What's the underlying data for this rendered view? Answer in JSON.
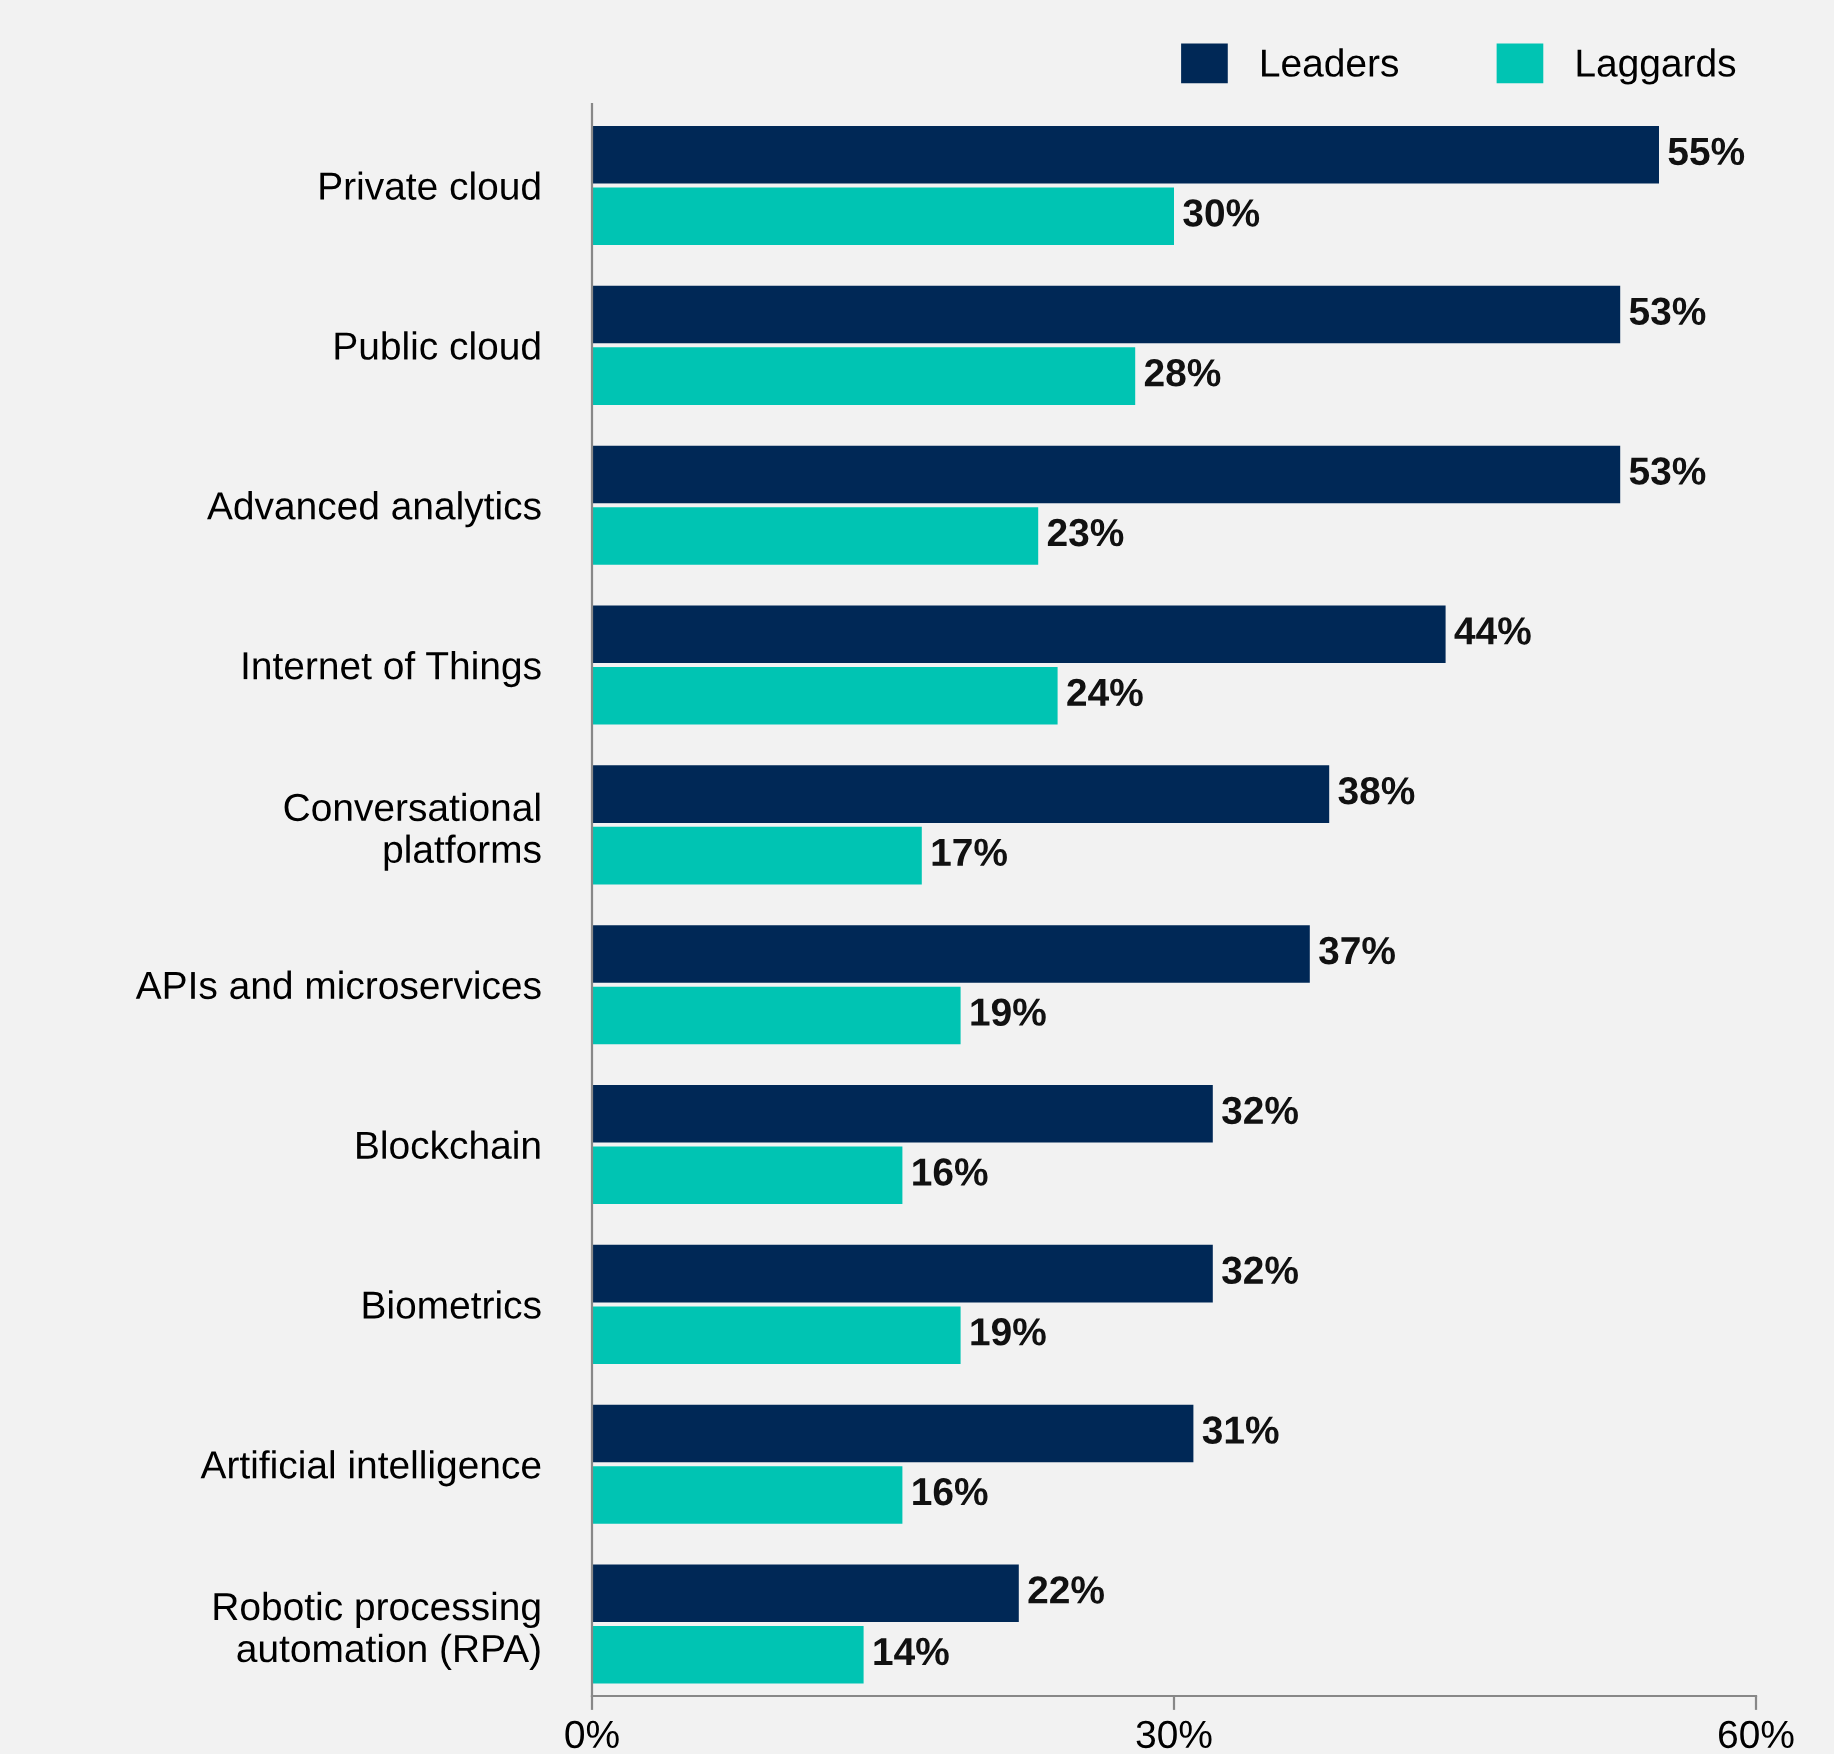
{
  "chart_data": {
    "type": "bar",
    "orientation": "horizontal",
    "categories": [
      "Private cloud",
      "Public cloud",
      "Advanced analytics",
      "Internet of Things",
      "Conversational\nplatforms",
      "APIs and microservices",
      "Blockchain",
      "Biometrics",
      "Artificial intelligence",
      "Robotic processing\nautomation (RPA)"
    ],
    "series": [
      {
        "name": "Leaders",
        "color": "#002856",
        "values": [
          55,
          53,
          53,
          44,
          38,
          37,
          32,
          32,
          31,
          22
        ],
        "value_labels": [
          "55%",
          "53%",
          "53%",
          "44%",
          "38%",
          "37%",
          "32%",
          "32%",
          "31%",
          "22%"
        ]
      },
      {
        "name": "Laggards",
        "color": "#00c4b3",
        "values": [
          30,
          28,
          23,
          24,
          17,
          19,
          16,
          19,
          16,
          14
        ],
        "value_labels": [
          "30%",
          "28%",
          "23%",
          "24%",
          "17%",
          "19%",
          "16%",
          "19%",
          "16%",
          "14%"
        ]
      }
    ],
    "xlim": [
      0,
      60
    ],
    "xticks": [
      {
        "value": 0,
        "label": "0%"
      },
      {
        "value": 30,
        "label": "30%"
      },
      {
        "value": 60,
        "label": "60%"
      }
    ],
    "grid": false,
    "legend": "top right"
  }
}
